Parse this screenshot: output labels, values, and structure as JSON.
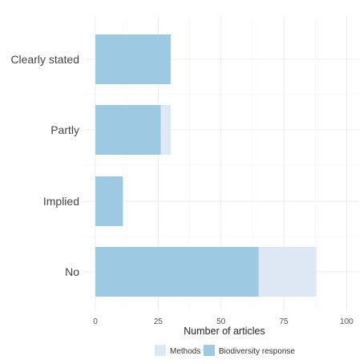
{
  "colors": {
    "methods": "#dde8f4",
    "biodiversity_response": "#9ecae1",
    "grid_major": "#ebebeb",
    "grid_minor": "#f4f4f4"
  },
  "chart_data": {
    "type": "bar",
    "orientation": "horizontal",
    "stacked": false,
    "categories": [
      "Clearly stated",
      "Partly",
      "Implied",
      "No"
    ],
    "series": [
      {
        "name": "Methods",
        "values": [
          30,
          30,
          11,
          88
        ],
        "color": "#dde8f4"
      },
      {
        "name": "Biodiversity response",
        "values": [
          30,
          26,
          11,
          65
        ],
        "color": "#9ecae1"
      }
    ],
    "title": "",
    "xlabel": "Number of articles",
    "ylabel": "",
    "xlim": [
      0,
      105
    ],
    "xticks": [
      0,
      25,
      50,
      75,
      100
    ],
    "grid": true,
    "legend_position": "bottom"
  }
}
